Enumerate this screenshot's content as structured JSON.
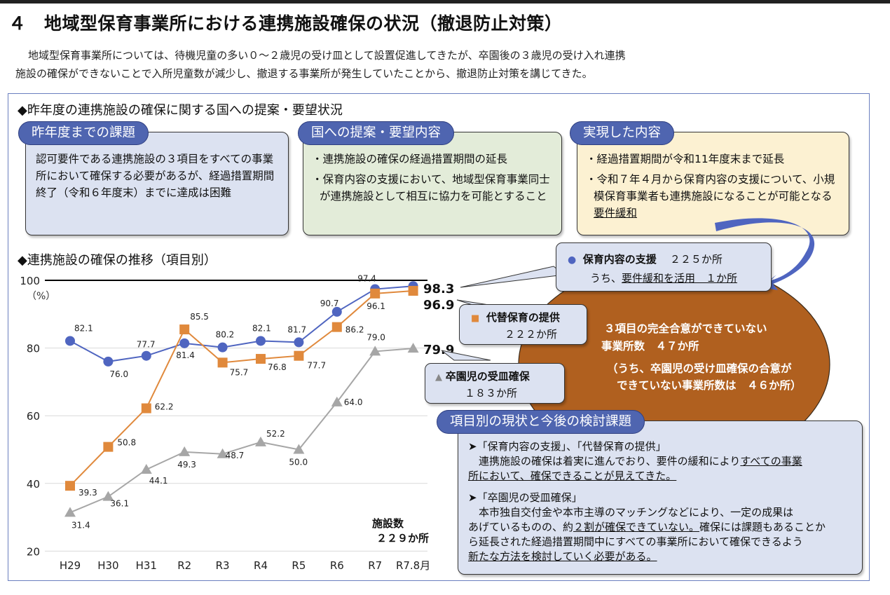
{
  "title": "４　地域型保育事業所における連携施設確保の状況（撤退防止対策）",
  "intro": {
    "line1": "地域型保育事業所については、待機児童の多い０～２歳児の受け皿として設置促進してきたが、卒園後の３歳児の受け入れ連携",
    "line2": "施設の確保ができないことで入所児童数が減少し、撤退する事業所が発生していたことから、撤退防止対策を講じてきた。"
  },
  "proposal_section": {
    "heading": "◆昨年度の連携施設の確保に関する国への提案・要望状況",
    "boxes": [
      {
        "title": "昨年度までの課題",
        "text": "認可要件である連携施設の３項目をすべての事業所において確保する必要があるが、経過措置期間終了（令和６年度末）までに達成は困難"
      },
      {
        "title": "国への提案・要望内容",
        "bullets": [
          "・連携施設の確保の経過措置期間の延長",
          "・保育内容の支援において、地域型保育事業同士が連携施設として相互に協力を可能とすること"
        ]
      },
      {
        "title": "実現した内容",
        "bullets": [
          "・経過措置期間が令和11年度末まで延長",
          "・令和７年４月から保育内容の支援について、小規模保育事業者も連携施設になることが可能となる"
        ],
        "underlined": "要件緩和"
      }
    ]
  },
  "chart_heading": "◆連携施設の確保の推移（項目別）",
  "chart_data": {
    "type": "line",
    "title": "連携施設の確保の推移（項目別）",
    "ylabel": "（%）",
    "ylim": [
      20,
      100
    ],
    "yticks": [
      "20",
      "40",
      "60",
      "80",
      "100"
    ],
    "categories": [
      "H29",
      "H30",
      "H31",
      "R2",
      "R3",
      "R4",
      "R5",
      "R6",
      "R7",
      "R7.8月"
    ],
    "grid": true,
    "series": [
      {
        "name": "保育内容の支援",
        "marker": "circle",
        "color": "#4f65c0",
        "values": [
          82.1,
          76.0,
          77.7,
          81.4,
          80.2,
          82.1,
          81.7,
          90.7,
          97.4,
          98.3
        ],
        "labels": [
          "82.1",
          "76.0",
          "77.7",
          "81.4",
          "80.2",
          "82.1",
          "81.7",
          "90.7",
          "97.4",
          "98.3"
        ]
      },
      {
        "name": "代替保育の提供",
        "marker": "square",
        "color": "#e0893c",
        "values": [
          39.3,
          50.8,
          62.2,
          85.5,
          75.7,
          76.8,
          77.7,
          86.2,
          96.1,
          96.9
        ],
        "labels": [
          "39.3",
          "50.8",
          "62.2",
          "85.5",
          "75.7",
          "76.8",
          "77.7",
          "86.2",
          "96.1",
          "96.9"
        ]
      },
      {
        "name": "卒園児の受皿確保",
        "marker": "triangle",
        "color": "#a6a6a6",
        "values": [
          31.4,
          36.1,
          44.1,
          49.3,
          48.7,
          52.2,
          50.0,
          64.0,
          79.0,
          79.9
        ],
        "labels": [
          "31.4",
          "36.1",
          "44.1",
          "49.3",
          "48.7",
          "52.2",
          "50.0",
          "64.0",
          "79.0",
          "79.9"
        ]
      }
    ],
    "facility_count": {
      "label": "施設数",
      "value": "２２９か所"
    }
  },
  "callouts": {
    "support": {
      "name": "保育内容の支援",
      "count": "２２５か所",
      "sub_prefix": "うち、",
      "sub_underlined": "要件緩和を活用　１か所"
    },
    "alt_care": {
      "name": "代替保育の提供",
      "count": "２２２か所"
    },
    "graduates": {
      "name": "卒園児の受皿確保",
      "count": "１８３か所"
    }
  },
  "ellipse": {
    "line1": "３項目の完全合意ができていない",
    "line2": "事業所数　４７か所",
    "line3": "（うち、卒園児の受け皿確保の合意が",
    "line4": "できていない事業所数は　４６か所）",
    "color": "#b0601f"
  },
  "issues": {
    "title": "項目別の現状と今後の検討課題",
    "item1_head": "➤「保育内容の支援」、「代替保育の提供」",
    "item1_text_plain": "　連携施設の確保は着実に進んでおり、要件の緩和により",
    "item1_text_u1": "すべての事業",
    "item1_text_u2": "所において、確保できることが見えてきた。",
    "item2_head": "➤「卒園児の受皿確保」",
    "item2_l1": "　本市独自交付金や本市主導のマッチングなどにより、一定の成果は",
    "item2_l2a": "あげているものの、約",
    "item2_l2u": "２割が確保できていない。",
    "item2_l2b": "確保には課題もあることか",
    "item2_l3": "ら延長された経過措置期間中にすべての事業所において確保できるよう",
    "item2_l4u": "新たな方法を検討していく必要がある。"
  },
  "colors": {
    "accent_blue": "#4f65b0",
    "box_blue": "#dce2f1",
    "box_green": "#e3ecd9",
    "box_yellow": "#fcf1d2",
    "orange": "#e0893c",
    "gray": "#a6a6a6"
  }
}
